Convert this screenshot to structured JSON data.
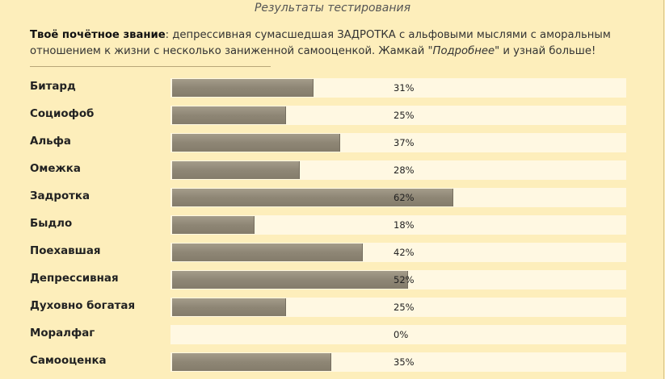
{
  "page": {
    "title": "Результаты тестирования",
    "summary": {
      "lead": "Твоё почётное звание",
      "text_before": ": депрессивная сумасшедшая ЗАДРОТКА с альфовыми мыслями с аморальным отношением к жизни с несколько заниженной самооценкой. Жамкай \"",
      "link": "Подробнее",
      "text_after": "\" и узнай больше!"
    }
  },
  "results": [
    {
      "label": "Битард",
      "value": 31,
      "text": "31%"
    },
    {
      "label": "Социофоб",
      "value": 25,
      "text": "25%"
    },
    {
      "label": "Альфа",
      "value": 37,
      "text": "37%"
    },
    {
      "label": "Омежка",
      "value": 28,
      "text": "28%"
    },
    {
      "label": "Задротка",
      "value": 62,
      "text": "62%"
    },
    {
      "label": "Быдло",
      "value": 18,
      "text": "18%"
    },
    {
      "label": "Поехавшая",
      "value": 42,
      "text": "42%"
    },
    {
      "label": "Депрессивная",
      "value": 52,
      "text": "52%"
    },
    {
      "label": "Духовно богатая",
      "value": 25,
      "text": "25%"
    },
    {
      "label": "Моралфаг",
      "value": 0,
      "text": "0%"
    },
    {
      "label": "Самооценка",
      "value": 35,
      "text": "35%"
    }
  ],
  "colors": {
    "background": "#fdeebb",
    "track": "#fff8e2",
    "fill": "#8e8675"
  }
}
